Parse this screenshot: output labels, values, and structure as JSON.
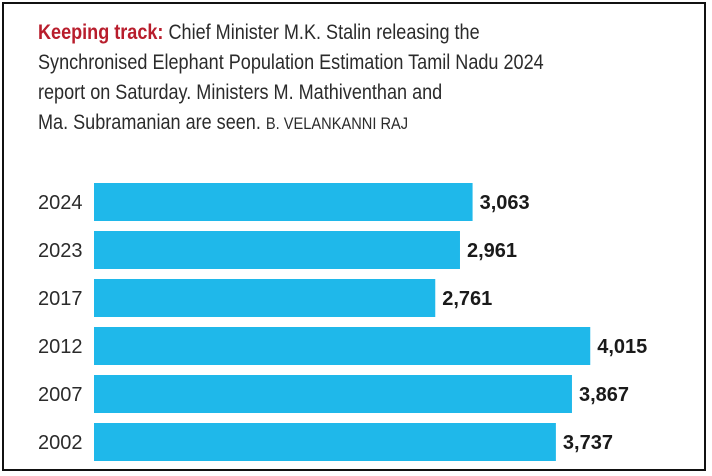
{
  "caption": {
    "kicker": "Keeping track:",
    "line1": "Chief Minister M.K. Stalin releasing the",
    "line2": "Synchronised Elephant Population Estimation Tamil Nadu 2024",
    "line3": "report on Saturday. Ministers M. Mathiventhan and",
    "line4": "Ma. Subramanian are seen.",
    "credit": "B. VELANKANNI RAJ"
  },
  "chart_data": {
    "type": "bar",
    "orientation": "horizontal",
    "categories": [
      "2024",
      "2023",
      "2017",
      "2012",
      "2007",
      "2002"
    ],
    "values": [
      3063,
      2961,
      2761,
      4015,
      3867,
      3737
    ],
    "value_labels": [
      "3,063",
      "2,961",
      "2,761",
      "4,015",
      "3,867",
      "3,737"
    ],
    "bar_color": "#1fb8ea",
    "grid": false,
    "legend": "none"
  }
}
